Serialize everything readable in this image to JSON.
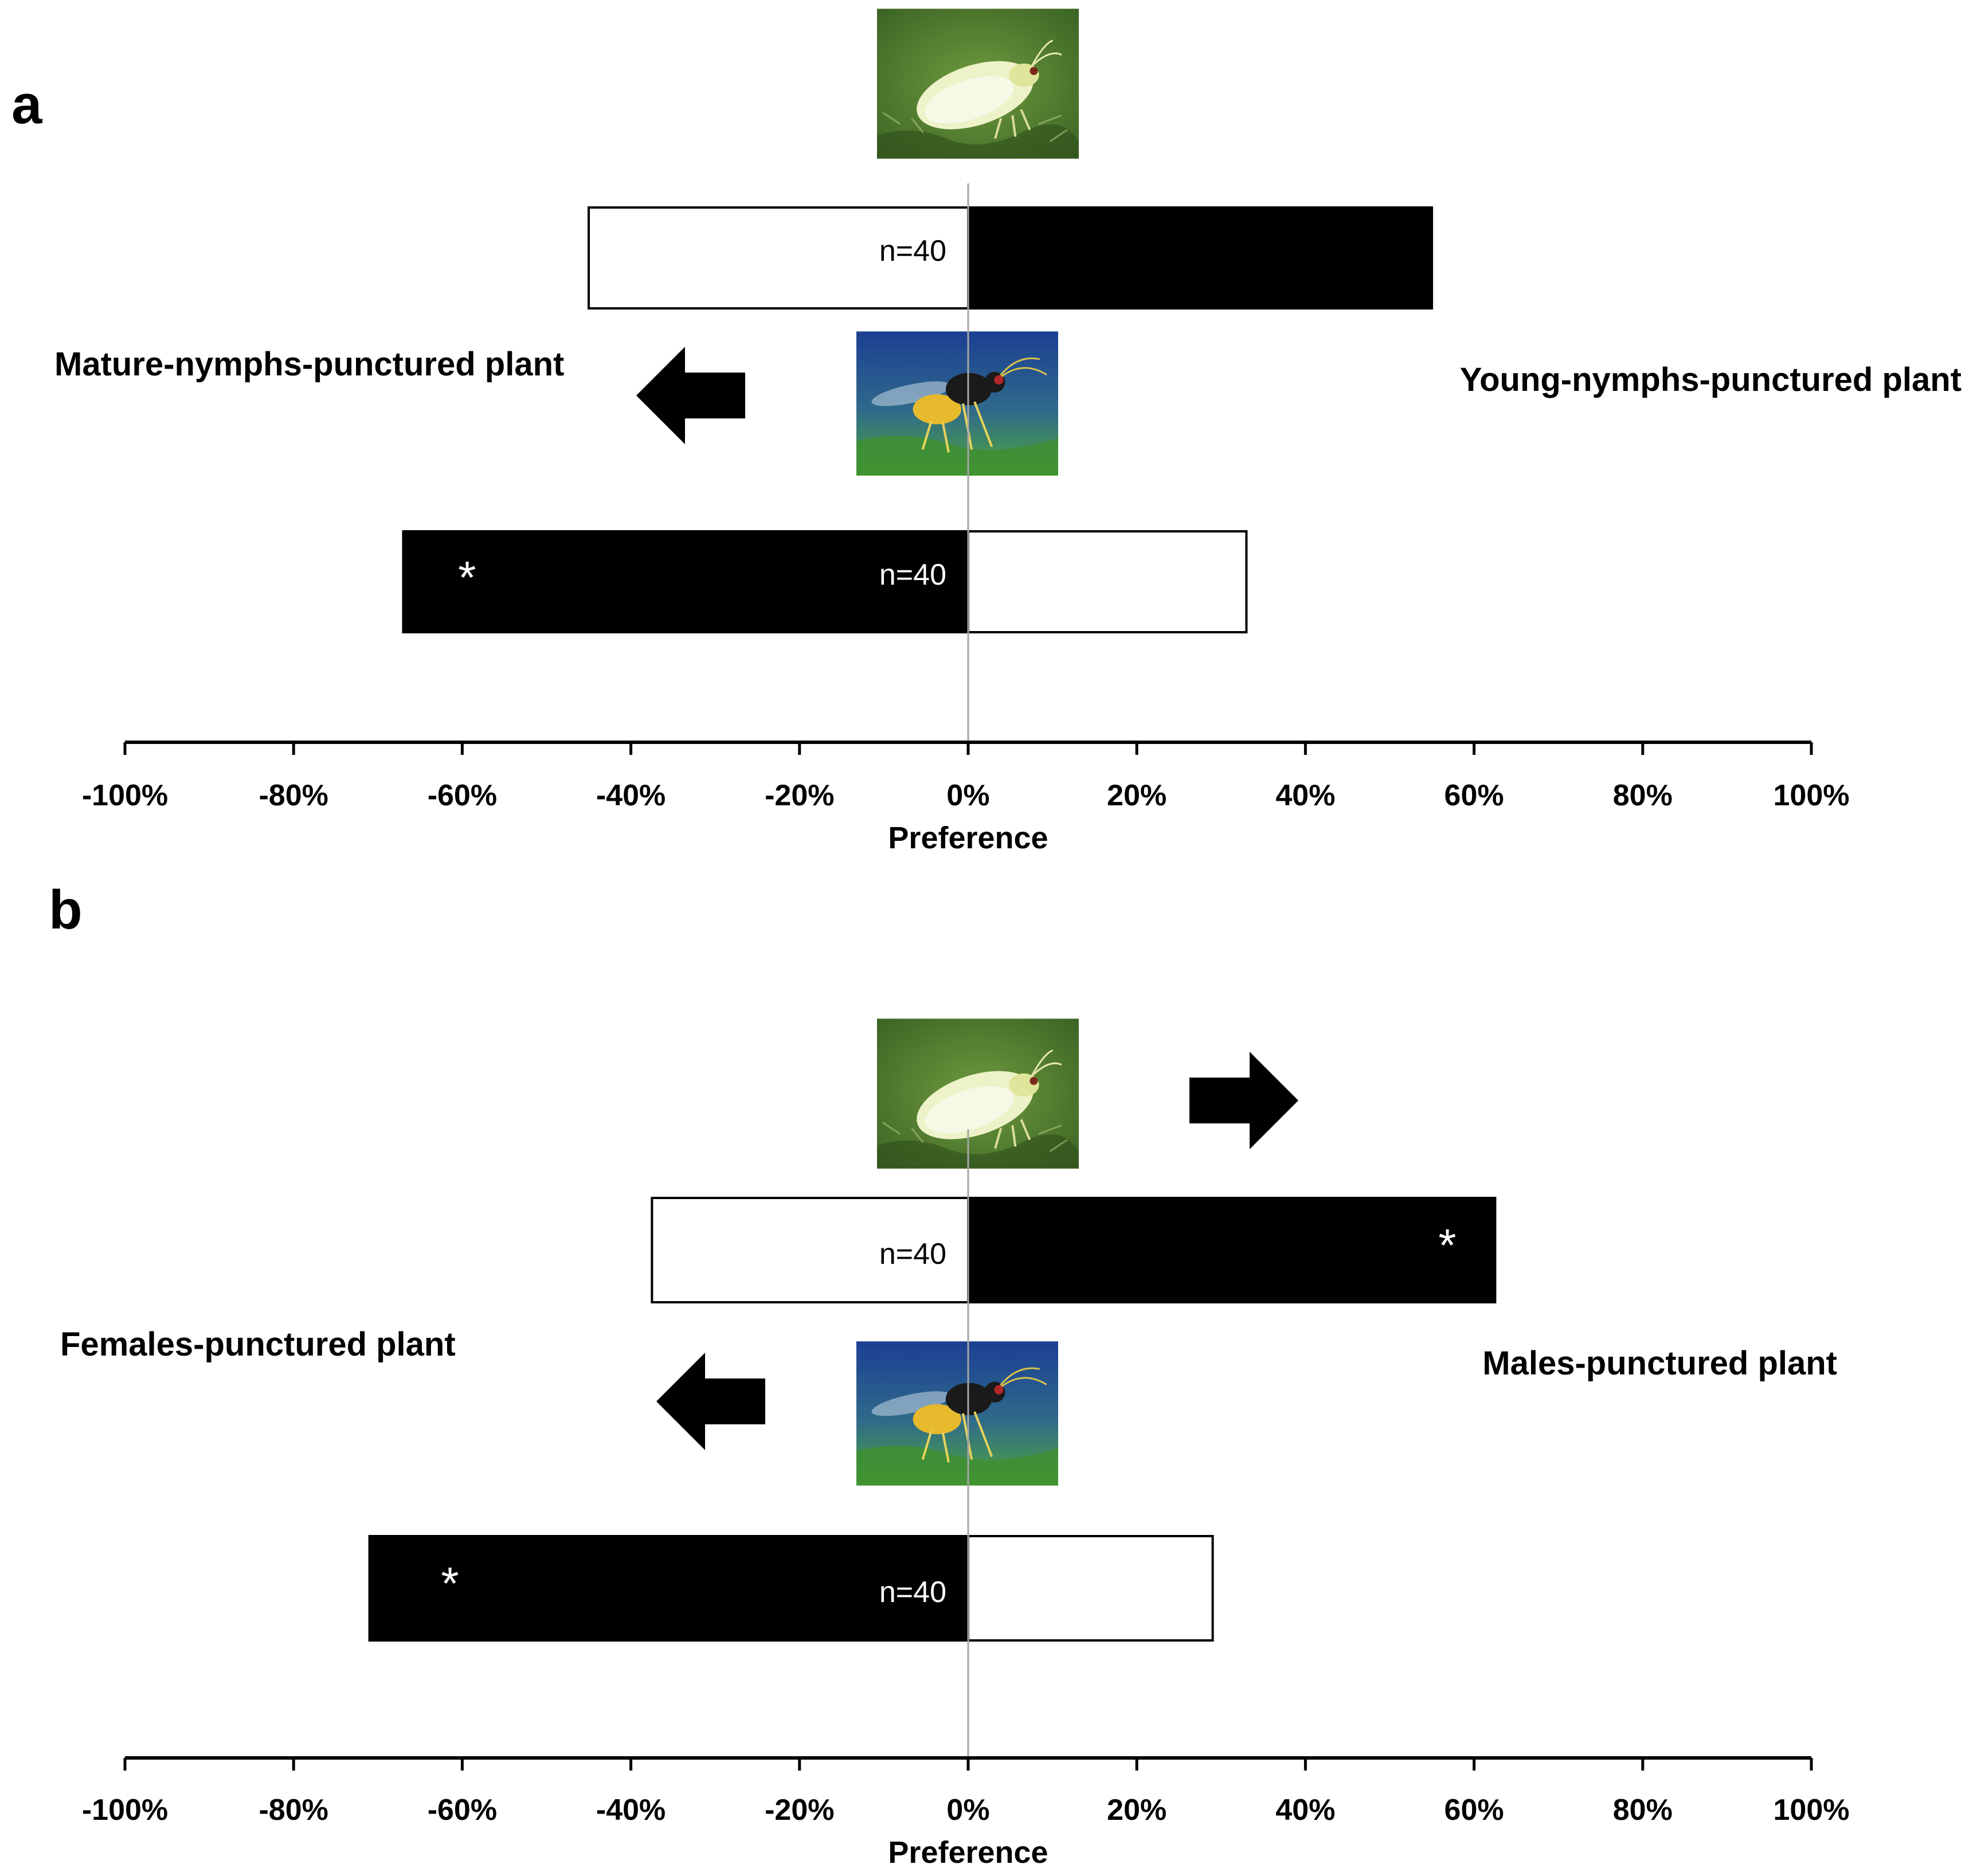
{
  "colors": {
    "filled_bar": "#000000",
    "open_bar": "#ffffff",
    "axis": "#000000",
    "zero_line": "#a6a6a6",
    "whitefly_bg": "#4e7a2e",
    "whitefly_body": "#eef2c9",
    "wasp_bg_top": "#1c3f93",
    "wasp_bg_bottom": "#4fa83b",
    "wasp_body": "#e7b92c"
  },
  "icons": {
    "whitefly": "whitefly-photo",
    "parasitoid": "parasitoid-wasp-photo",
    "arrow_left": "arrow-left-icon",
    "arrow_right": "arrow-right-icon"
  },
  "chart_data": [
    {
      "panel_label": "a",
      "type": "bar",
      "orientation": "horizontal",
      "xlabel": "Preference",
      "ylabel": "",
      "xlim": [
        -100,
        100
      ],
      "x_ticks": [
        -100,
        -80,
        -60,
        -40,
        -20,
        0,
        20,
        40,
        60,
        80,
        100
      ],
      "x_tick_labels": [
        "-100%",
        "-80%",
        "-60%",
        "-40%",
        "-20%",
        "0%",
        "20%",
        "40%",
        "60%",
        "80%",
        "100%"
      ],
      "left_label": "Mature-nymphs-punctured plant",
      "right_label": "Young-nymphs-punctured plant",
      "arrow_direction": "left",
      "rows": [
        {
          "insect": "whitefly",
          "n_label": "n=40",
          "left_value": -45,
          "right_value": 55,
          "left_filled": false,
          "right_filled": true,
          "left_asterisk": "",
          "right_asterisk": ""
        },
        {
          "insect": "parasitoid",
          "n_label": "n=40",
          "left_value": -67,
          "right_value": 33,
          "left_filled": true,
          "right_filled": false,
          "left_asterisk": "*",
          "right_asterisk": ""
        }
      ]
    },
    {
      "panel_label": "b",
      "type": "bar",
      "orientation": "horizontal",
      "xlabel": "Preference",
      "ylabel": "",
      "xlim": [
        -100,
        100
      ],
      "x_ticks": [
        -100,
        -80,
        -60,
        -40,
        -20,
        0,
        20,
        40,
        60,
        80,
        100
      ],
      "x_tick_labels": [
        "-100%",
        "-80%",
        "-60%",
        "-40%",
        "-20%",
        "0%",
        "20%",
        "40%",
        "60%",
        "80%",
        "100%"
      ],
      "left_label": "Females-punctured plant",
      "right_label": "Males-punctured plant",
      "arrow_direction": "both",
      "rows": [
        {
          "insect": "whitefly",
          "n_label": "n=40",
          "left_value": -37.5,
          "right_value": 62.5,
          "left_filled": false,
          "right_filled": true,
          "left_asterisk": "",
          "right_asterisk": "*"
        },
        {
          "insect": "parasitoid",
          "n_label": "n=40",
          "left_value": -71,
          "right_value": 29,
          "left_filled": true,
          "right_filled": false,
          "left_asterisk": "*",
          "right_asterisk": ""
        }
      ]
    }
  ]
}
